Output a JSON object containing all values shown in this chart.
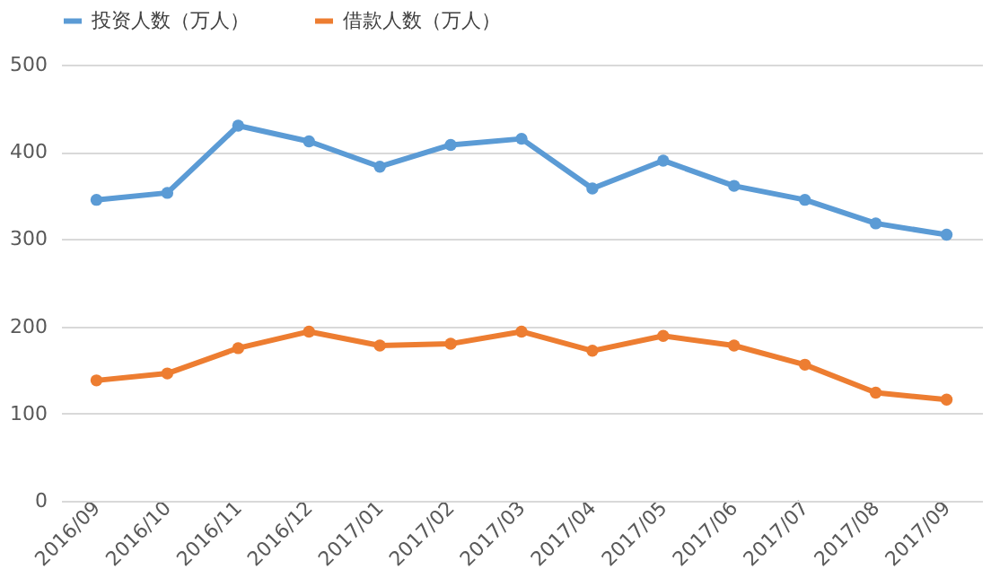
{
  "chart_data": {
    "type": "line",
    "categories": [
      "2016/09",
      "2016/10",
      "2016/11",
      "2016/12",
      "2017/01",
      "2017/02",
      "2017/03",
      "2017/04",
      "2017/05",
      "2017/06",
      "2017/07",
      "2017/08",
      "2017/09"
    ],
    "series": [
      {
        "name": "投资人数（万人）",
        "color": "#5b9bd5",
        "values": [
          345,
          353,
          430,
          412,
          383,
          408,
          415,
          358,
          390,
          361,
          345,
          318,
          305
        ]
      },
      {
        "name": "借款人数（万人）",
        "color": "#ed7d31",
        "values": [
          138,
          146,
          175,
          194,
          178,
          180,
          194,
          172,
          189,
          178,
          156,
          124,
          116
        ]
      }
    ],
    "ylim": [
      0,
      500
    ],
    "yticks": [
      0,
      100,
      200,
      300,
      400,
      500
    ],
    "grid": "y",
    "legend": "top",
    "marker": "circle",
    "line_style": "solid"
  }
}
